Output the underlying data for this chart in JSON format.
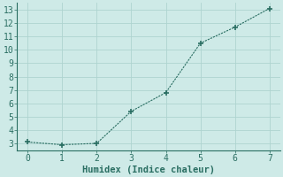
{
  "x": [
    0,
    1,
    2,
    3,
    4,
    5,
    6,
    7
  ],
  "y": [
    3.1,
    2.9,
    3.0,
    5.4,
    6.8,
    10.5,
    11.7,
    13.1
  ],
  "xlabel": "Humidex (Indice chaleur)",
  "xlim": [
    -0.3,
    7.3
  ],
  "ylim": [
    2.5,
    13.5
  ],
  "yticks": [
    3,
    4,
    5,
    6,
    7,
    8,
    9,
    10,
    11,
    12,
    13
  ],
  "xticks": [
    0,
    1,
    2,
    3,
    4,
    5,
    6,
    7
  ],
  "line_color": "#2a6e62",
  "marker": "+",
  "marker_size": 5,
  "bg_color": "#ceeae7",
  "grid_color": "#aed4d0",
  "xlabel_fontsize": 7.5,
  "tick_fontsize": 7
}
